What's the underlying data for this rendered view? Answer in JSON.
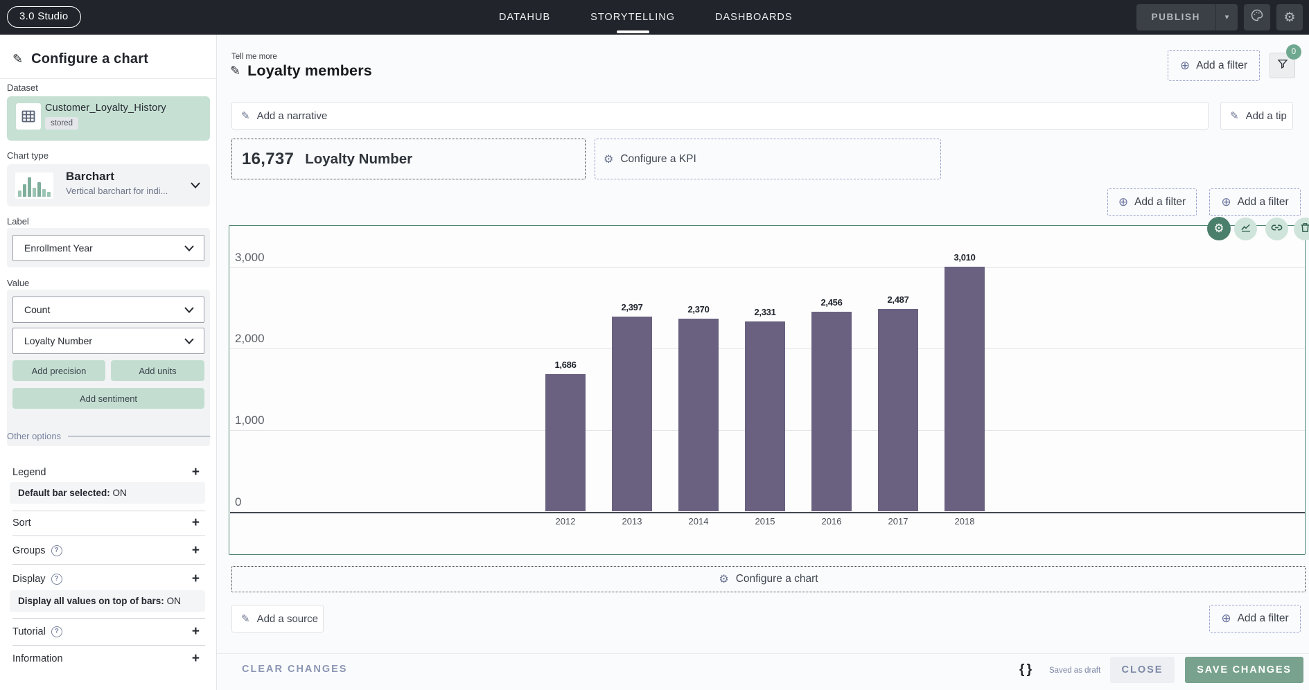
{
  "topbar": {
    "logo": "3.0 Studio",
    "nav": [
      {
        "label": "DATAHUB",
        "active": false
      },
      {
        "label": "STORYTELLING",
        "active": true
      },
      {
        "label": "DASHBOARDS",
        "active": false
      }
    ],
    "publish_label": "PUBLISH"
  },
  "sidebar": {
    "title": "Configure a chart",
    "dataset_label": "Dataset",
    "dataset": {
      "name": "Customer_Loyalty_History",
      "badge": "stored"
    },
    "chart_type_label": "Chart type",
    "chart_type": {
      "name": "Barchart",
      "description": "Vertical barchart for indi..."
    },
    "label_section": {
      "label": "Label",
      "selected": "Enrollment Year"
    },
    "value_section": {
      "label": "Value",
      "aggregation": "Count",
      "field": "Loyalty Number",
      "add_precision": "Add precision",
      "add_units": "Add units",
      "add_sentiment": "Add sentiment"
    },
    "other_options_label": "Other options",
    "options": [
      {
        "label": "Legend",
        "sub_bold": "Default bar selected:",
        "sub_value": " ON"
      },
      {
        "label": "Sort"
      },
      {
        "label": "Groups"
      },
      {
        "label": "Display",
        "sub_bold": "Display all values on top of bars:",
        "sub_value": " ON"
      },
      {
        "label": "Tutorial"
      },
      {
        "label": "Information"
      }
    ]
  },
  "main": {
    "tell_me_more": "Tell me more",
    "title": "Loyalty members",
    "add_filter_label": "Add a filter",
    "filter_badge": "0",
    "narrative_label": "Add a narrative",
    "add_tip_label": "Add a tip",
    "kpi": {
      "value": "16,737",
      "label": "Loyalty Number"
    },
    "configure_kpi_label": "Configure a KPI",
    "configure_chart_label": "Configure a chart",
    "add_source_label": "Add a source"
  },
  "footer": {
    "clear_label": "CLEAR CHANGES",
    "saved_status": "Saved as draft",
    "close_label": "CLOSE",
    "save_label": "SAVE CHANGES"
  },
  "icons": {
    "pencil": "✎",
    "gear": "⚙",
    "plus": "+",
    "circled_plus": "⊕",
    "caret_down": "▾",
    "question": "?",
    "braces": "{ }"
  },
  "colors": {
    "topbar_bg": "#21252b",
    "accent_green_border": "#4d8672",
    "mint_card": "#c6e0d3",
    "mint_button": "#c4ddd1",
    "bar_purple": "#6a6180",
    "badge_green": "#6fa890",
    "save_button_green": "#78a28d",
    "dashed_border_blue": "#98a2c8"
  },
  "chart_data": {
    "type": "bar",
    "categories": [
      "2012",
      "2013",
      "2014",
      "2015",
      "2016",
      "2017",
      "2018"
    ],
    "values": [
      1686,
      2397,
      2370,
      2331,
      2456,
      2487,
      3010
    ],
    "value_labels": [
      "1,686",
      "2,397",
      "2,370",
      "2,331",
      "2,456",
      "2,487",
      "3,010"
    ],
    "yticks": [
      0,
      1000,
      2000,
      3000
    ],
    "ytick_labels": [
      "0",
      "1,000",
      "2,000",
      "3,000"
    ],
    "ylim": [
      0,
      3500
    ],
    "xlabel": "Enrollment Year",
    "ylabel": "Count of Loyalty Number",
    "grid": true,
    "legend": false,
    "title": "Loyalty members"
  }
}
